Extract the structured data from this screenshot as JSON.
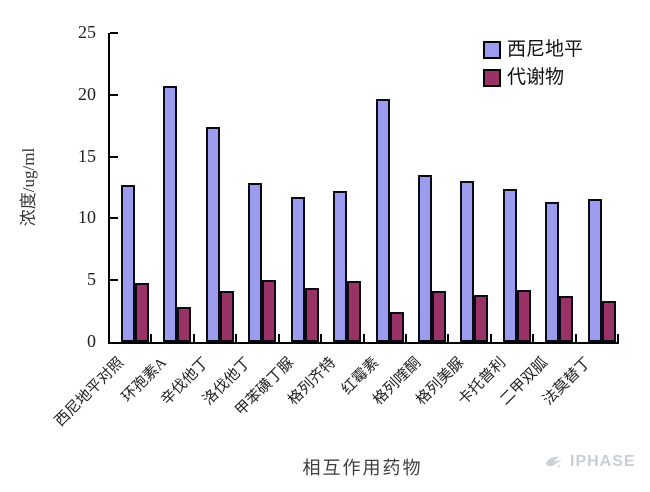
{
  "chart_data": {
    "type": "bar",
    "title": "",
    "categories": [
      "西尼地平对照",
      "环孢素A",
      "辛伐他丁",
      "洛伐他丁",
      "甲苯磺丁脲",
      "格列齐特",
      "红霉素",
      "格列喹酮",
      "格列美脲",
      "卡托普利",
      "二甲双胍",
      "法莫替丁"
    ],
    "series": [
      {
        "name": "西尼地平",
        "color": "#9c9cee",
        "values": [
          12.7,
          20.7,
          17.4,
          12.9,
          11.7,
          12.2,
          19.7,
          13.5,
          13.0,
          12.4,
          11.3,
          11.6
        ]
      },
      {
        "name": "代谢物",
        "color": "#993366",
        "values": [
          4.8,
          2.8,
          4.1,
          5.0,
          4.4,
          4.9,
          2.4,
          4.1,
          3.8,
          4.2,
          3.7,
          3.3
        ]
      }
    ],
    "xlabel": "相互作用药物",
    "ylabel": "浓度/ug/ml",
    "ylim": [
      0,
      25
    ],
    "yticks": [
      0,
      5,
      10,
      15,
      20,
      25
    ],
    "grid": false,
    "legend_position": "top-right",
    "bar_border_color": "#0a0a14",
    "axis_color": "#000000",
    "background_color": "#ffffff"
  },
  "watermark": {
    "text": "IPHASE",
    "icon": "bird-swirl-icon",
    "color": "#c9ced3"
  }
}
